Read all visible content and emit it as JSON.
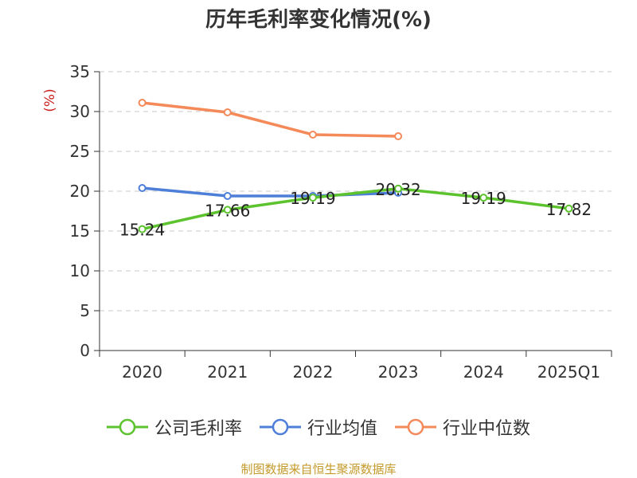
{
  "chart_data": {
    "type": "line",
    "title": "历年毛利率变化情况(%)",
    "ylabel": "(%)",
    "xlabel": "",
    "categories": [
      "2020",
      "2021",
      "2022",
      "2023",
      "2024",
      "2025Q1"
    ],
    "ylim": [
      0,
      35
    ],
    "yticks": [
      0,
      5,
      10,
      15,
      20,
      25,
      30,
      35
    ],
    "grid": true,
    "legend_position": "bottom",
    "series": [
      {
        "name": "公司毛利率",
        "color": "#5cc22d",
        "values": [
          15.24,
          17.66,
          19.19,
          20.32,
          19.19,
          17.82
        ],
        "labels": [
          "15.24",
          "17.66",
          "19.19",
          "20.32",
          "19.19",
          "17.82"
        ]
      },
      {
        "name": "行业均值",
        "color": "#4e7fd8",
        "values": [
          20.4,
          19.4,
          19.4,
          19.8,
          null,
          null
        ]
      },
      {
        "name": "行业中位数",
        "color": "#f4895a",
        "values": [
          31.1,
          29.9,
          27.1,
          26.9,
          null,
          null
        ]
      }
    ],
    "source": "制图数据来自恒生聚源数据库"
  }
}
